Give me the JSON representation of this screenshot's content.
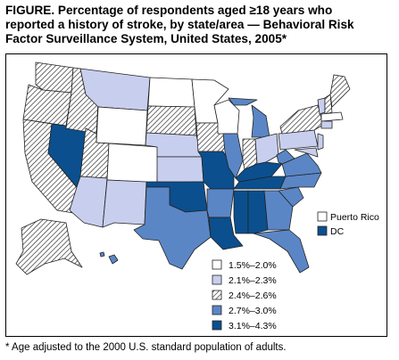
{
  "title": {
    "line1": "FIGURE. Percentage of respondents aged ≥18 years who",
    "line2": "reported a history of stroke, by state/area — Behavioral Risk",
    "line3": "Factor Surveillance System, United States, 2005*"
  },
  "footnote": "* Age adjusted to the 2000 U.S. standard population of adults.",
  "legend": {
    "categories": [
      {
        "label": "1.5%–2.0%",
        "color": "#ffffff"
      },
      {
        "label": "2.1%–2.3%",
        "color": "#c8cfee"
      },
      {
        "label": "2.4%–2.6%",
        "color": "hatch"
      },
      {
        "label": "2.7%–3.0%",
        "color": "#5b86c6"
      },
      {
        "label": "3.1%–4.3%",
        "color": "#0b4f8e"
      }
    ],
    "extra": [
      {
        "label": "Puerto Rico",
        "color": "#ffffff"
      },
      {
        "label": "DC",
        "color": "#0b4f8e"
      }
    ]
  },
  "colors": {
    "c1": "#ffffff",
    "c2": "#c8cfee",
    "c4": "#5b86c6",
    "c5": "#0b4f8e",
    "border": "#222222"
  }
}
